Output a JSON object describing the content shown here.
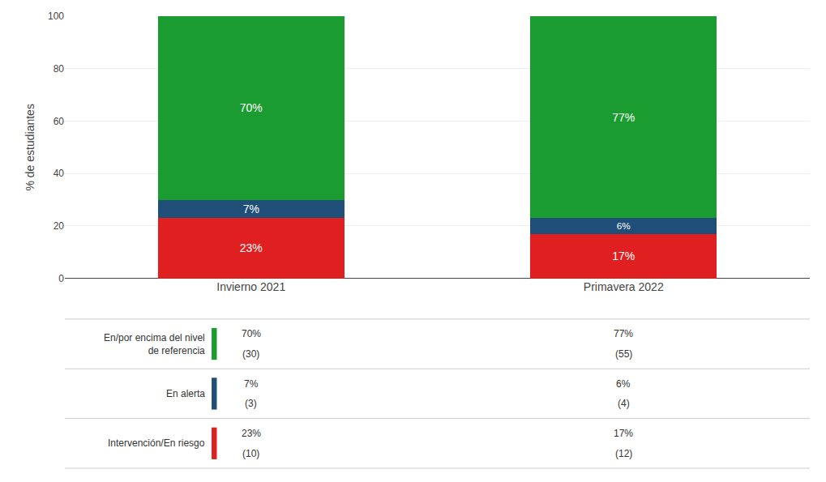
{
  "chart_data": {
    "type": "bar",
    "stacked": true,
    "data_labels": true,
    "grid": true,
    "categories": [
      "Invierno 2021",
      "Primavera 2022"
    ],
    "ylabel": "% de estudiantes",
    "ylim": [
      0,
      100
    ],
    "yticks": [
      0,
      20,
      40,
      60,
      80,
      100
    ],
    "series": [
      {
        "name": "Intervención/En riesgo",
        "color": "#e02020",
        "values": [
          23,
          17
        ],
        "value_labels": [
          "23%",
          "17%"
        ],
        "counts": [
          10,
          12
        ],
        "count_labels": [
          "(10)",
          "(12)"
        ]
      },
      {
        "name": "En alerta",
        "color": "#1f4e79",
        "values": [
          7,
          6
        ],
        "value_labels": [
          "7%",
          "6%"
        ],
        "counts": [
          3,
          4
        ],
        "count_labels": [
          "(3)",
          "(4)"
        ]
      },
      {
        "name": "En/por encima del nivel\nde referencia",
        "color": "#1a9c30",
        "values": [
          70,
          77
        ],
        "value_labels": [
          "70%",
          "77%"
        ],
        "counts": [
          30,
          55
        ],
        "count_labels": [
          "(30)",
          "(55)"
        ]
      }
    ]
  }
}
